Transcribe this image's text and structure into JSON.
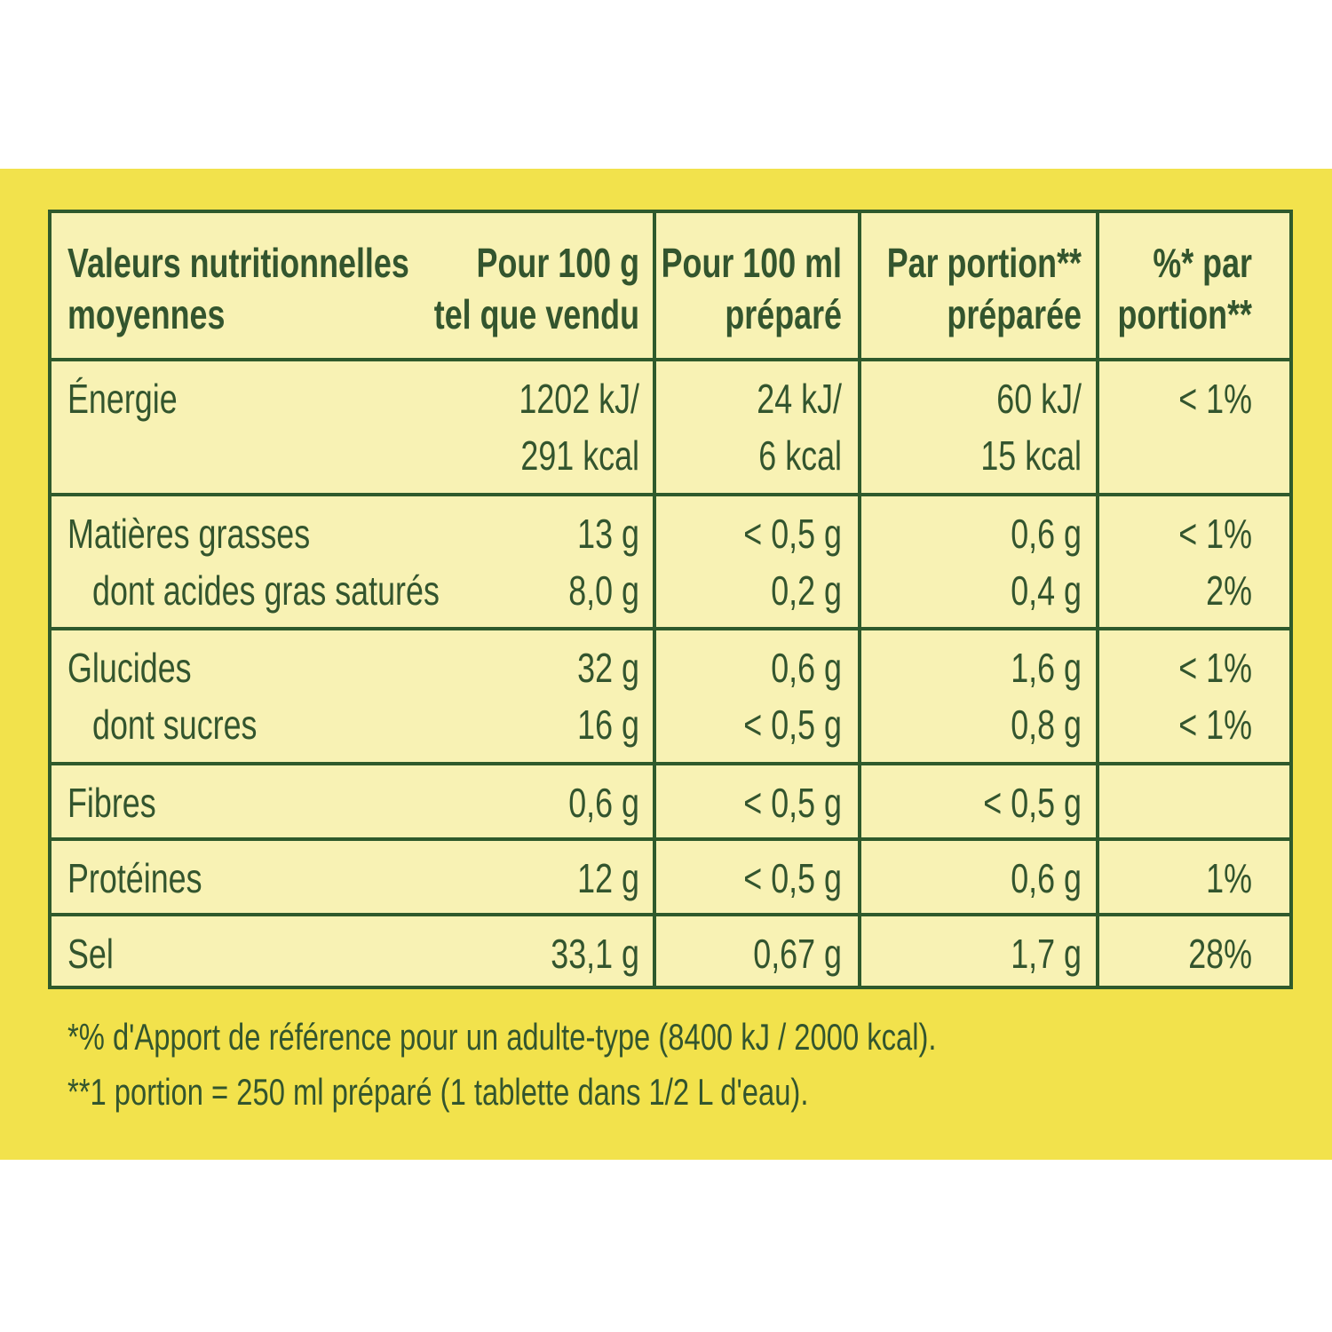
{
  "table": {
    "header": [
      [
        "Valeurs nutritionnelles",
        "moyennes"
      ],
      [
        "Pour 100 g",
        "tel que vendu"
      ],
      [
        "Pour 100 ml",
        "préparé"
      ],
      [
        "Par  portion**",
        "préparée"
      ],
      [
        "%* par",
        "portion**"
      ]
    ],
    "rows": [
      {
        "cells": [
          [
            "Énergie"
          ],
          [
            "1202 kJ/",
            "291 kcal"
          ],
          [
            "24 kJ/",
            "6 kcal"
          ],
          [
            "60 kJ/",
            "15 kcal"
          ],
          [
            "< 1%"
          ]
        ]
      },
      {
        "cells": [
          [
            "Matières grasses",
            "dont acides gras saturés"
          ],
          [
            "13 g",
            "8,0 g"
          ],
          [
            "< 0,5 g",
            "0,2 g"
          ],
          [
            "0,6 g",
            "0,4 g"
          ],
          [
            "< 1%",
            "2%"
          ]
        ]
      },
      {
        "cells": [
          [
            "Glucides",
            "dont sucres"
          ],
          [
            "32 g",
            "16 g"
          ],
          [
            "0,6 g",
            "< 0,5 g"
          ],
          [
            "1,6 g",
            "0,8 g"
          ],
          [
            "< 1%",
            "< 1%"
          ]
        ]
      },
      {
        "cells": [
          [
            "Fibres"
          ],
          [
            "0,6 g"
          ],
          [
            "< 0,5 g"
          ],
          [
            "< 0,5 g"
          ],
          []
        ]
      },
      {
        "cells": [
          [
            "Protéines"
          ],
          [
            "12 g"
          ],
          [
            "< 0,5 g"
          ],
          [
            "0,6 g"
          ],
          [
            "1%"
          ]
        ]
      },
      {
        "cells": [
          [
            "Sel"
          ],
          [
            "33,1 g"
          ],
          [
            "0,67 g"
          ],
          [
            "1,7 g"
          ],
          [
            "28%"
          ]
        ]
      }
    ],
    "footnotes": [
      "*% d'Apport de référence pour un adulte-type (8400 kJ / 2000 kcal).",
      "**1 portion = 250 ml préparé (1 tablette dans 1/2 L d'eau)."
    ]
  }
}
